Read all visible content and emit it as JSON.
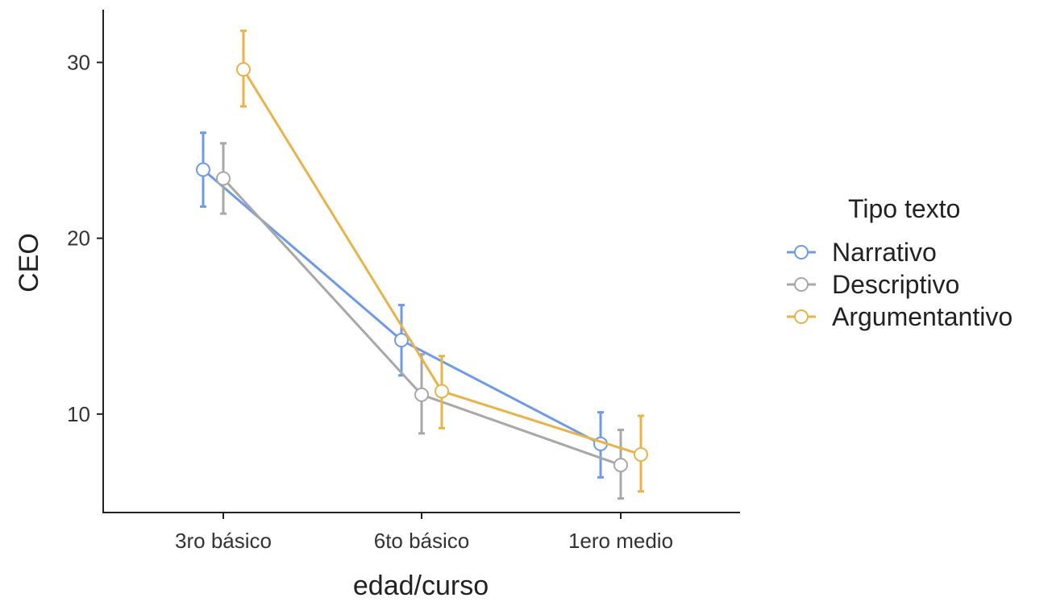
{
  "chart_data": {
    "type": "line",
    "xlabel": "edad/curso",
    "ylabel": "CEO",
    "categories": [
      "3ro básico",
      "6to básico",
      "1ero medio"
    ],
    "ylim": [
      4.4,
      33
    ],
    "yticks": [
      10,
      20,
      30
    ],
    "grid": false,
    "legend": {
      "title": "Tipo texto",
      "position": "right"
    },
    "series": [
      {
        "name": "Narrativo",
        "color": "#6f9be6",
        "values": [
          23.9,
          14.2,
          8.3
        ],
        "lower": [
          21.8,
          12.2,
          6.4
        ],
        "upper": [
          26.0,
          16.2,
          10.1
        ]
      },
      {
        "name": "Descriptivo",
        "color": "#a8a8a8",
        "values": [
          23.4,
          11.1,
          7.1
        ],
        "lower": [
          21.4,
          8.9,
          5.2
        ],
        "upper": [
          25.4,
          13.4,
          9.1
        ]
      },
      {
        "name": "Argumentantivo",
        "color": "#e8b34a",
        "values": [
          29.6,
          11.3,
          7.7
        ],
        "lower": [
          27.5,
          9.2,
          5.6
        ],
        "upper": [
          31.8,
          13.3,
          9.9
        ]
      }
    ]
  }
}
